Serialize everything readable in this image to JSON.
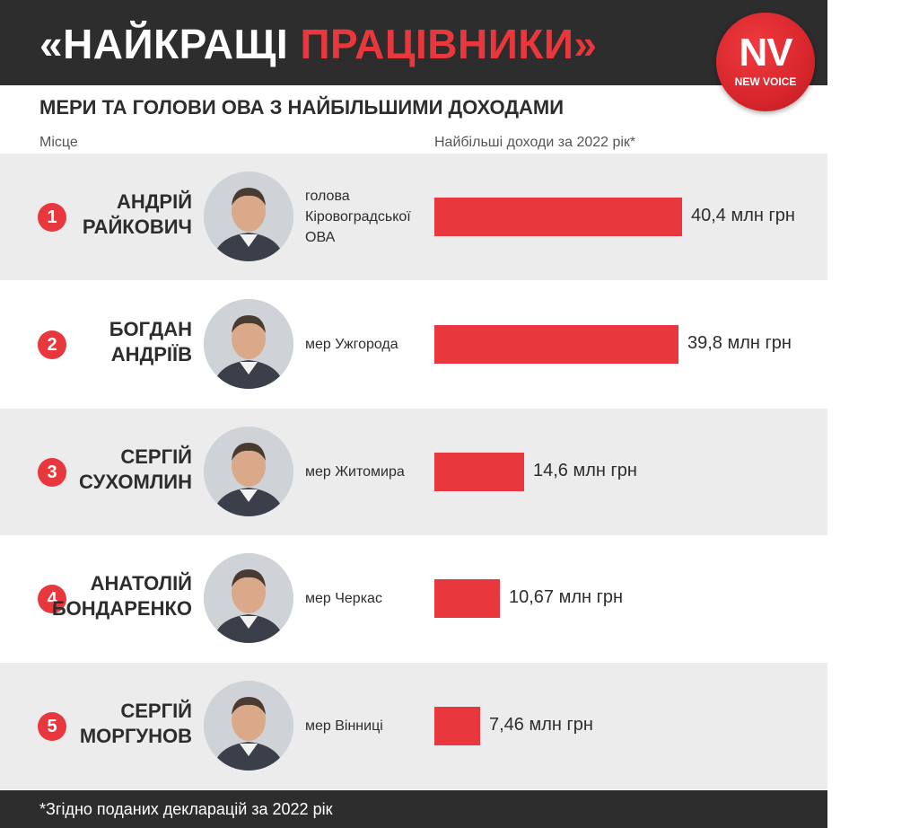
{
  "header": {
    "title_prefix": "«НАЙКРАЩІ ",
    "title_accent": "ПРАЦІВНИКИ»",
    "logo_main": "NV",
    "logo_sub": "NEW VOICE"
  },
  "subtitle": "МЕРИ ТА ГОЛОВИ ОВА З НАЙБІЛЬШИМИ ДОХОДАМИ",
  "columns": {
    "place": "Місце",
    "income": "Найбільші доходи за 2022 рік*"
  },
  "footer_note": "*Згідно поданих декларацій за 2022 рік",
  "colors": {
    "accent": "#e8383d",
    "dark": "#2d2d2d",
    "row_shade": "#ececec"
  },
  "chart_data": {
    "type": "bar",
    "orientation": "horizontal",
    "unit": "млн грн",
    "categories": [
      "АНДРІЙ РАЙКОВИЧ",
      "БОГДАН АНДРІЇВ",
      "СЕРГІЙ СУХОМЛИН",
      "АНАТОЛІЙ БОНДАРЕНКО",
      "СЕРГІЙ МОРГУНОВ"
    ],
    "values": [
      40.4,
      39.8,
      14.6,
      10.67,
      7.46
    ],
    "value_labels": [
      "40,4 млн грн",
      "39,8 млн грн",
      "14,6 млн грн",
      "10,67 млн грн",
      "7,46 млн грн"
    ],
    "xlim": [
      0,
      40.4
    ]
  },
  "rows": [
    {
      "rank": "1",
      "first": "АНДРІЙ",
      "last": "РАЙКОВИЧ",
      "role_lines": [
        "голова",
        "Кіровоградської",
        "ОВА"
      ],
      "photo": "portrait-raikovych"
    },
    {
      "rank": "2",
      "first": "БОГДАН",
      "last": "АНДРІЇВ",
      "role_lines": [
        "мер Ужгорода"
      ],
      "photo": "portrait-andriiv"
    },
    {
      "rank": "3",
      "first": "СЕРГІЙ",
      "last": "СУХОМЛИН",
      "role_lines": [
        "мер Житомира"
      ],
      "photo": "portrait-sukhomlyn"
    },
    {
      "rank": "4",
      "first": "АНАТОЛІЙ",
      "last": "БОНДАРЕНКО",
      "role_lines": [
        "мер Черкас"
      ],
      "photo": "portrait-bondarenko"
    },
    {
      "rank": "5",
      "first": "СЕРГІЙ",
      "last": "МОРГУНОВ",
      "role_lines": [
        "мер Вінниці"
      ],
      "photo": "portrait-morhunov"
    }
  ]
}
